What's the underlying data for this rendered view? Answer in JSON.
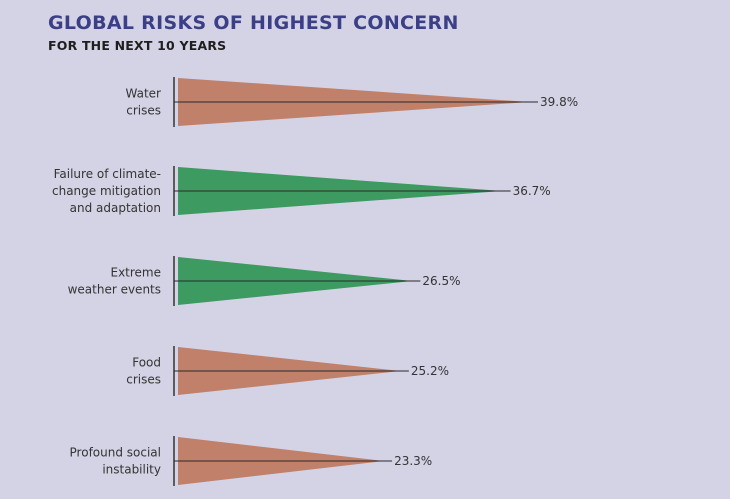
{
  "header": {
    "title": "GLOBAL RISKS OF HIGHEST CONCERN",
    "subtitle": "FOR THE NEXT 10 YEARS"
  },
  "colors": {
    "background": "#d4d3e6",
    "title": "#3b3f86",
    "brown": "#c0806a",
    "green": "#3d9a60"
  },
  "chart_data": {
    "type": "bar",
    "title": "GLOBAL RISKS OF HIGHEST CONCERN",
    "subtitle": "FOR THE NEXT 10 YEARS",
    "xlabel": "",
    "ylabel": "",
    "unit": "%",
    "categories": [
      [
        "Water",
        "crises"
      ],
      [
        "Failure of climate-",
        "change mitigation",
        "and adaptation"
      ],
      [
        "Extreme",
        "weather events"
      ],
      [
        "Food",
        "crises"
      ],
      [
        "Profound social",
        "instability"
      ]
    ],
    "values": [
      39.8,
      36.7,
      26.5,
      25.2,
      23.3
    ],
    "value_labels": [
      "39.8%",
      "36.7%",
      "26.5%",
      "25.2%",
      "23.3%"
    ],
    "bar_colors": [
      "brown",
      "green",
      "green",
      "brown",
      "brown"
    ],
    "bar_shape": "triangle"
  }
}
